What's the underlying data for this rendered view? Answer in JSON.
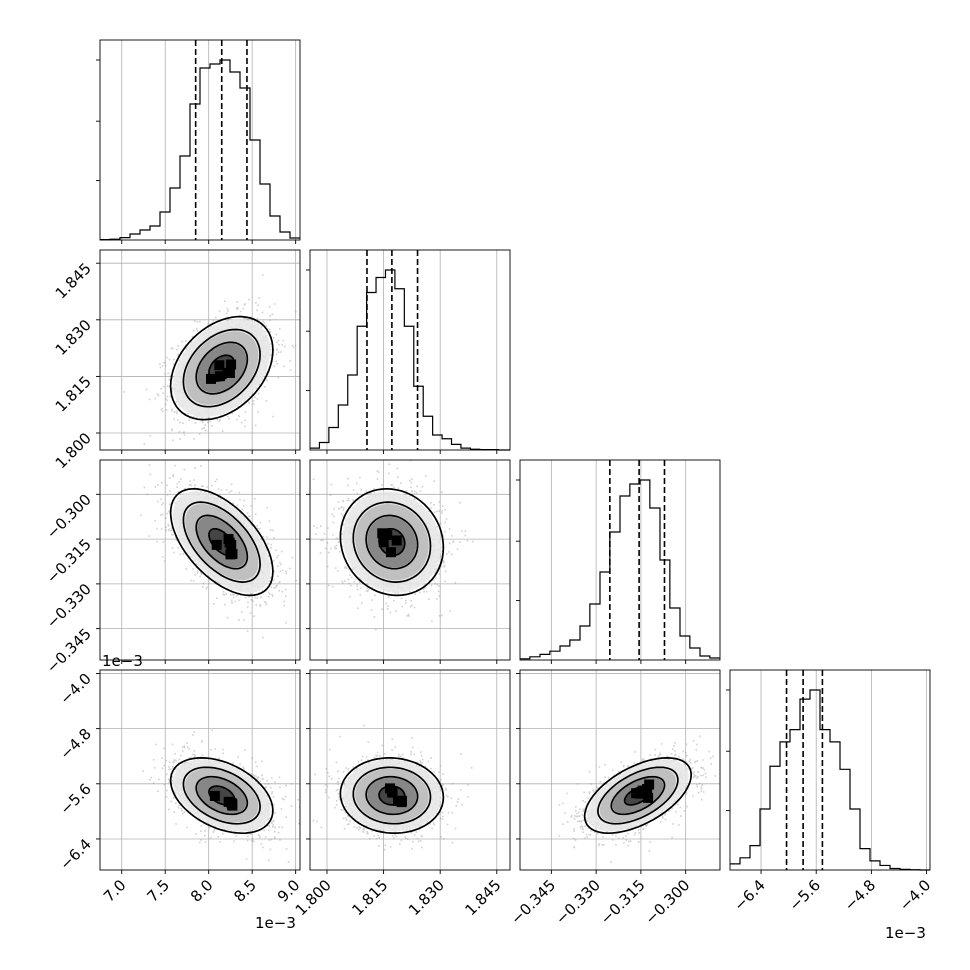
{
  "chart_data": {
    "type": "corner",
    "parameters": [
      {
        "range": [
          6.75,
          9.05
        ],
        "ticks": [
          7.0,
          7.5,
          8.0,
          8.5,
          9.0
        ],
        "tick_labels": [
          "7.0",
          "7.5",
          "8.0",
          "8.5",
          "9.0"
        ],
        "offset_label": "1e−3"
      },
      {
        "range": [
          1.7955,
          1.8485
        ],
        "ticks": [
          1.8,
          1.815,
          1.83,
          1.845
        ],
        "tick_labels": [
          "1.800",
          "1.815",
          "1.830",
          "1.845"
        ],
        "offset_label": ""
      },
      {
        "range": [
          -0.3555,
          -0.2885
        ],
        "ticks": [
          -0.345,
          -0.33,
          -0.315,
          -0.3
        ],
        "tick_labels": [
          "−0.345",
          "−0.330",
          "−0.315",
          "−0.300"
        ],
        "offset_label": ""
      },
      {
        "range": [
          -6.85,
          -3.95
        ],
        "ticks": [
          -6.4,
          -5.6,
          -4.8,
          -4.0
        ],
        "tick_labels": [
          "−6.4",
          "−5.6",
          "−4.8",
          "−4.0"
        ],
        "offset_label": "1e−3"
      }
    ],
    "histograms": [
      {
        "bins": [
          6.75,
          6.865,
          6.98,
          7.095,
          7.21,
          7.325,
          7.44,
          7.555,
          7.67,
          7.785,
          7.9,
          8.015,
          8.13,
          8.245,
          8.36,
          8.475,
          8.59,
          8.705,
          8.82,
          8.935,
          9.05
        ],
        "counts": [
          1,
          2,
          6,
          15,
          25,
          35,
          70,
          130,
          210,
          340,
          430,
          440,
          450,
          420,
          380,
          250,
          140,
          60,
          20,
          5
        ],
        "quantiles": [
          7.85,
          8.15,
          8.44
        ]
      },
      {
        "bins": [
          1.7955,
          1.798,
          1.8005,
          1.803,
          1.8055,
          1.808,
          1.8105,
          1.813,
          1.8155,
          1.818,
          1.8205,
          1.823,
          1.8255,
          1.828,
          1.8305,
          1.833,
          1.8355,
          1.838,
          1.8405,
          1.8455,
          1.8485
        ],
        "counts": [
          5,
          20,
          60,
          120,
          200,
          330,
          420,
          460,
          480,
          430,
          330,
          170,
          90,
          40,
          30,
          15,
          5,
          2,
          1,
          0
        ],
        "quantiles": [
          1.8106,
          1.8172,
          1.824
        ]
      },
      {
        "bins": [
          -0.3555,
          -0.3522,
          -0.3488,
          -0.3455,
          -0.3421,
          -0.3388,
          -0.3354,
          -0.3321,
          -0.3287,
          -0.3254,
          -0.322,
          -0.3187,
          -0.3153,
          -0.312,
          -0.3086,
          -0.3053,
          -0.3019,
          -0.2986,
          -0.2952,
          -0.2919,
          -0.2885
        ],
        "counts": [
          3,
          8,
          14,
          22,
          35,
          50,
          85,
          140,
          220,
          320,
          410,
          440,
          450,
          380,
          250,
          130,
          60,
          30,
          10,
          5
        ],
        "quantiles": [
          -0.3254,
          -0.3156,
          -0.3071
        ]
      },
      {
        "bins": [
          -6.85,
          -6.705,
          -6.56,
          -6.415,
          -6.27,
          -6.125,
          -5.98,
          -5.835,
          -5.69,
          -5.545,
          -5.4,
          -5.255,
          -5.11,
          -4.965,
          -4.82,
          -4.675,
          -4.53,
          -4.385,
          -4.24,
          -4.095,
          -3.95
        ],
        "counts": [
          20,
          40,
          80,
          200,
          340,
          420,
          460,
          560,
          590,
          460,
          420,
          330,
          200,
          70,
          30,
          15,
          5,
          2,
          1,
          0
        ],
        "quantiles": [
          -6.03,
          -5.79,
          -5.51
        ]
      }
    ],
    "scatter_panels": [
      {
        "row": 1,
        "col": 0,
        "mean": [
          8.15,
          1.8172
        ],
        "sd": [
          0.28,
          0.0065
        ],
        "corr": 0.35
      },
      {
        "row": 2,
        "col": 0,
        "mean": [
          8.15,
          -0.316
        ],
        "sd": [
          0.28,
          0.0085
        ],
        "corr": -0.55
      },
      {
        "row": 2,
        "col": 1,
        "mean": [
          1.8172,
          -0.316
        ],
        "sd": [
          0.0065,
          0.0085
        ],
        "corr": -0.1
      },
      {
        "row": 3,
        "col": 0,
        "mean": [
          8.15,
          -5.77
        ],
        "sd": [
          0.28,
          0.26
        ],
        "corr": -0.4
      },
      {
        "row": 3,
        "col": 1,
        "mean": [
          1.8172,
          -5.77
        ],
        "sd": [
          0.0065,
          0.26
        ],
        "corr": -0.05
      },
      {
        "row": 3,
        "col": 2,
        "mean": [
          -0.316,
          -5.77
        ],
        "sd": [
          0.0085,
          0.26
        ],
        "corr": 0.55
      }
    ],
    "contour_levels_sigma": [
      0.5,
      1.0,
      1.5,
      2.0
    ],
    "grid": true
  }
}
